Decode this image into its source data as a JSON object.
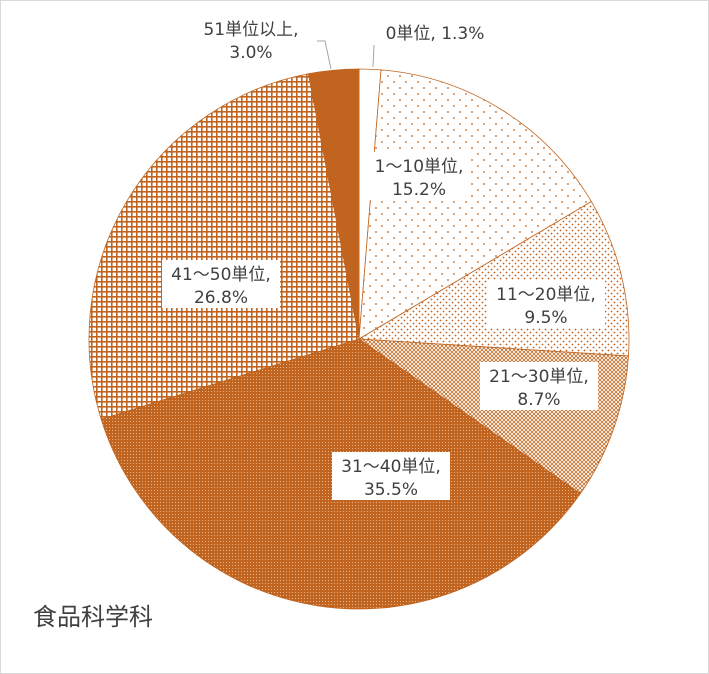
{
  "department": "食品科学科",
  "colors": {
    "accent": "#C0641F",
    "text": "#404040"
  },
  "chart_data": {
    "type": "pie",
    "title": "",
    "start_angle_deg": 0,
    "direction": "clockwise",
    "slices": [
      {
        "label": "0単位",
        "value": 1.3,
        "value_text": "1.3%",
        "fill": "white",
        "label_text": "0単位, 1.3%"
      },
      {
        "label": "1～10単位",
        "value": 15.2,
        "value_text": "15.2%",
        "fill": "sparse-dots",
        "label_line1": "1～10単位,",
        "label_line2": "15.2%"
      },
      {
        "label": "11～20単位",
        "value": 9.5,
        "value_text": "9.5%",
        "fill": "medium-dots",
        "label_line1": "11～20単位,",
        "label_line2": "9.5%"
      },
      {
        "label": "21～30単位",
        "value": 8.7,
        "value_text": "8.7%",
        "fill": "dense-dots",
        "label_line1": "21～30単位,",
        "label_line2": "8.7%"
      },
      {
        "label": "31～40単位",
        "value": 35.5,
        "value_text": "35.5%",
        "fill": "fine-hatch",
        "label_line1": "31～40単位,",
        "label_line2": "35.5%"
      },
      {
        "label": "41～50単位",
        "value": 26.8,
        "value_text": "26.8%",
        "fill": "grid",
        "label_line1": "41～50単位,",
        "label_line2": "26.8%"
      },
      {
        "label": "51単位以上",
        "value": 3.0,
        "value_text": "3.0%",
        "fill": "solid",
        "label_line1": "51単位以上,",
        "label_line2": "3.0%"
      }
    ]
  }
}
